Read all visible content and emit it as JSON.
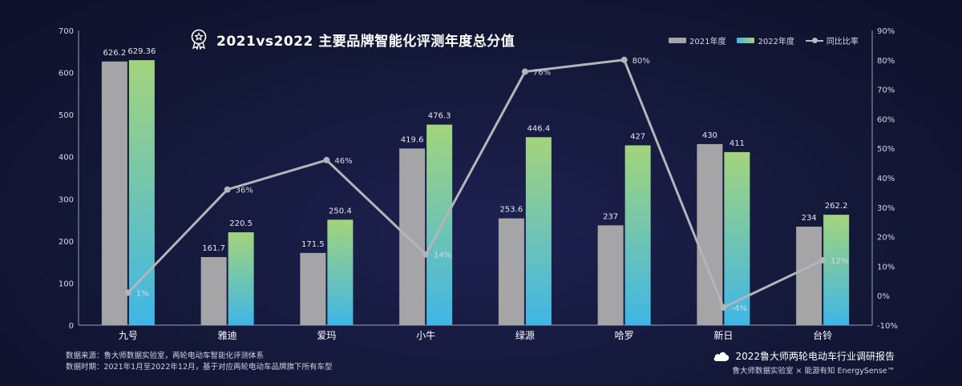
{
  "title": "2021vs2022 主要品牌智能化评测年度总分值",
  "legend": {
    "s2021": "2021年度",
    "s2022": "2022年度",
    "yoy": "同比比率"
  },
  "footer": {
    "source": "数据来源：鲁大师数据实验室，两轮电动车智能化评测体系",
    "period": "数据时期：2021年1月至2022年12月，基于对应两轮电动车品牌旗下所有车型",
    "report": "2022鲁大师两轮电动车行业调研报告",
    "credit": "鲁大师数据实验室 × 能源有知 EnergySense™"
  },
  "colors": {
    "bar2021": "#a5a5a8",
    "bar2022_top": "#a3d47c",
    "bar2022_bottom": "#3fb6e6",
    "line": "#b4b4bb"
  },
  "chart_data": {
    "type": "bar",
    "categories": [
      "九号",
      "雅迪",
      "爱玛",
      "小牛",
      "绿源",
      "哈罗",
      "新日",
      "台铃"
    ],
    "series": [
      {
        "name": "2021年度",
        "values": [
          626.2,
          161.7,
          171.5,
          419.6,
          253.6,
          237,
          430,
          234
        ],
        "labels": [
          "626.2",
          "161.7",
          "171.5",
          "419.6",
          "253.6",
          "237",
          "430",
          "234"
        ]
      },
      {
        "name": "2022年度",
        "values": [
          629.36,
          220.5,
          250.4,
          476.3,
          446.4,
          427,
          411,
          262.2
        ],
        "labels": [
          "629.36",
          "220.5",
          "250.4",
          "476.3",
          "446.4",
          "427",
          "411",
          "262.2"
        ]
      },
      {
        "name": "同比比率",
        "type": "line",
        "axis": "right",
        "values": [
          1,
          36,
          46,
          14,
          76,
          80,
          -4,
          12
        ],
        "labels": [
          "1%",
          "36%",
          "46%",
          "14%",
          "76%",
          "80%",
          "-4%",
          "12%"
        ]
      }
    ],
    "y_left": {
      "min": 0,
      "max": 700,
      "ticks": [
        "0",
        "100",
        "200",
        "300",
        "400",
        "500",
        "600",
        "700"
      ]
    },
    "y_right": {
      "min": -10,
      "max": 90,
      "ticks": [
        "-10%",
        "0%",
        "10%",
        "20%",
        "30%",
        "40%",
        "50%",
        "60%",
        "70%",
        "80%",
        "90%"
      ]
    },
    "grid": false,
    "legend_position": "top-right"
  }
}
